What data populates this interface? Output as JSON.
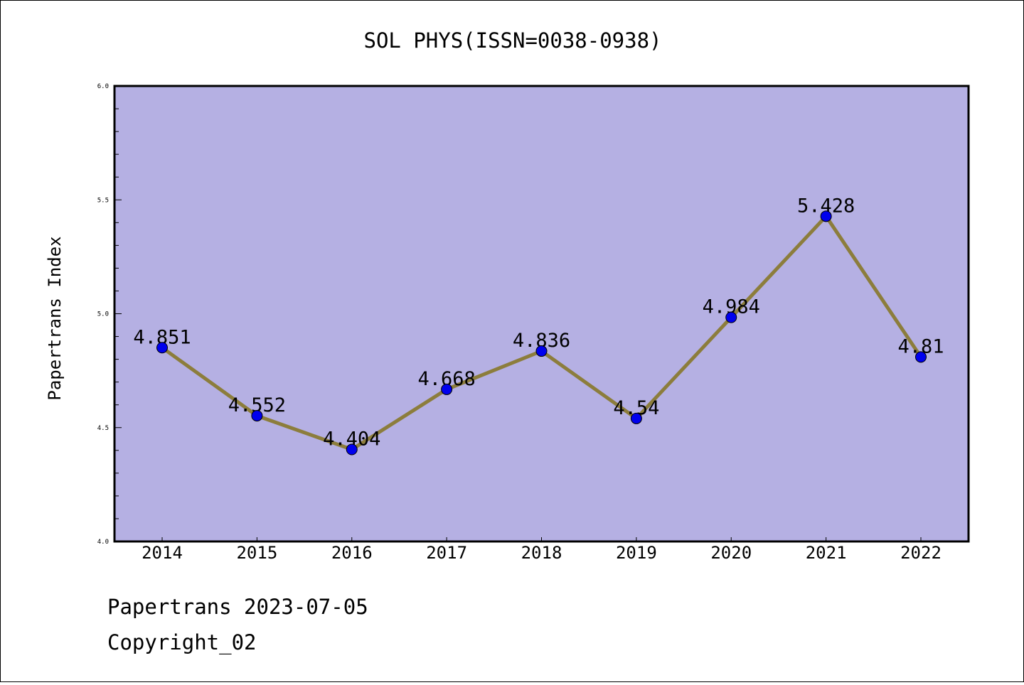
{
  "chart_data": {
    "type": "line",
    "title": "SOL PHYS(ISSN=0038-0938)",
    "xlabel": "",
    "ylabel": "Papertrans Index",
    "categories": [
      "2014",
      "2015",
      "2016",
      "2017",
      "2018",
      "2019",
      "2020",
      "2021",
      "2022"
    ],
    "series": [
      {
        "values": [
          4.851,
          4.552,
          4.404,
          4.668,
          4.836,
          4.54,
          4.984,
          5.428,
          4.81
        ],
        "data_labels": [
          "4.851",
          "4.552",
          "4.404",
          "4.668",
          "4.836",
          "4.54",
          "4.984",
          "5.428",
          "4.81"
        ]
      }
    ],
    "ylim": [
      4.0,
      6.0
    ],
    "yticks": [
      "4.0",
      "4.5",
      "5.0",
      "5.5",
      "6.0"
    ],
    "grid": false,
    "colors": {
      "plot_background": "#b5b0e3",
      "line": "#8c7d3c",
      "marker": "#0000ee"
    }
  },
  "footer": {
    "date_line": "Papertrans 2023-07-05",
    "copyright_line": "Copyright_02"
  }
}
